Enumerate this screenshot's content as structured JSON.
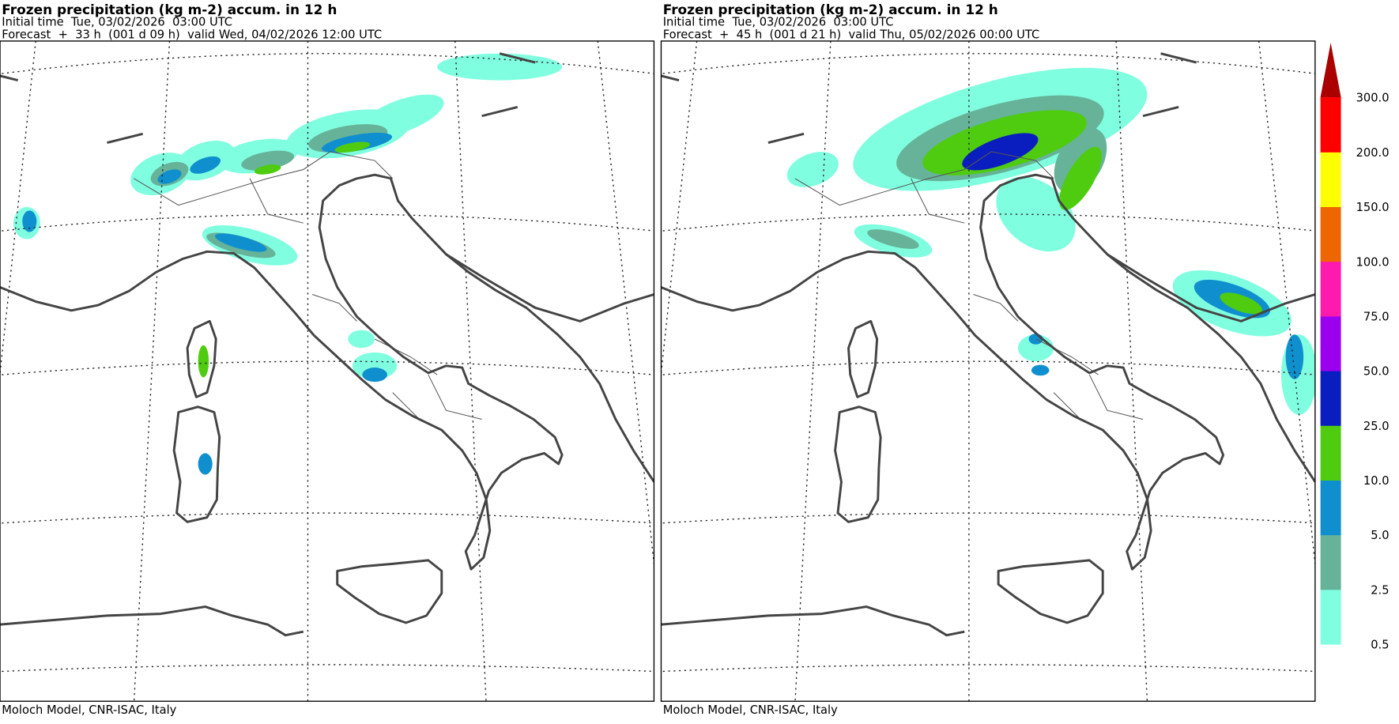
{
  "panels": [
    {
      "title": "Frozen precipitation (kg m-2) accum. in 12 h",
      "initial_time": "Initial time  Tue, 03/02/2026  03:00 UTC",
      "forecast": "Forecast  +  33 h  (001 d 09 h)  valid Wed, 04/02/2026 12:00 UTC",
      "footer": "Moloch Model, CNR-ISAC, Italy"
    },
    {
      "title": "Frozen precipitation (kg m-2) accum. in 12 h",
      "initial_time": "Initial time  Tue, 03/02/2026  03:00 UTC",
      "forecast": "Forecast  +  45 h  (001 d 21 h)  valid Thu, 05/02/2026 00:00 UTC",
      "footer": "Moloch Model, CNR-ISAC, Italy"
    }
  ],
  "legend": {
    "labels": [
      "0.5",
      "2.5",
      "5.0",
      "10.0",
      "25.0",
      "50.0",
      "75.0",
      "100.0",
      "150.0",
      "200.0",
      "300.0"
    ],
    "colors": [
      "#80ffe0",
      "#66b399",
      "#108fcf",
      "#4fcc10",
      "#0a1ec0",
      "#9a00ee",
      "#ff1aae",
      "#ee6600",
      "#ffff00",
      "#ff0000",
      "#aa0000"
    ]
  }
}
